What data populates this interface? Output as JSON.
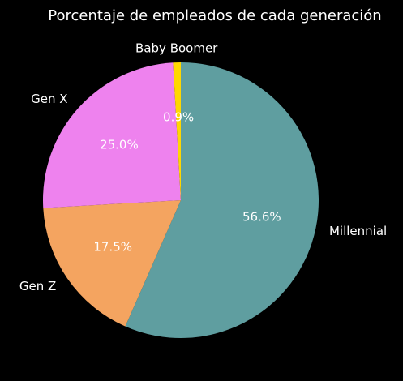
{
  "chart_data": {
    "type": "pie",
    "title": "Porcentaje de empleados de cada generación",
    "slices": [
      {
        "label": "Millennial",
        "value": 56.6,
        "pct_label": "56.6%",
        "color": "#5f9ea0"
      },
      {
        "label": "Gen Z",
        "value": 17.5,
        "pct_label": "17.5%",
        "color": "#f4a460"
      },
      {
        "label": "Gen X",
        "value": 25.0,
        "pct_label": "25.0%",
        "color": "#ee82ee"
      },
      {
        "label": "Baby Boomer",
        "value": 0.9,
        "pct_label": "0.9%",
        "color": "#ffd700"
      }
    ],
    "legend": "none"
  },
  "background": "#000000"
}
